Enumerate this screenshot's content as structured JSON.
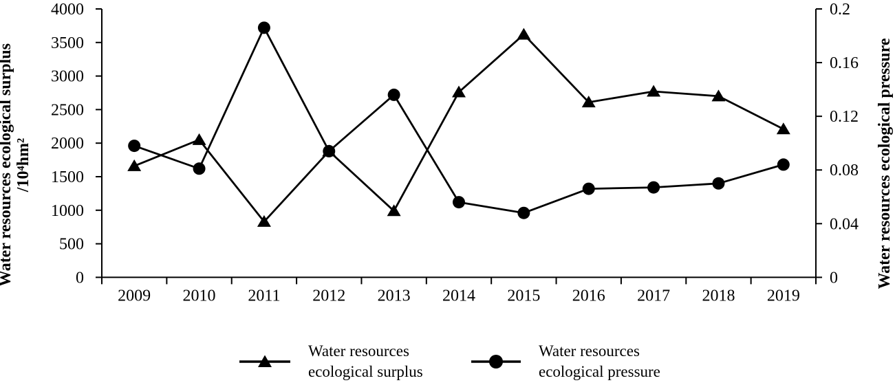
{
  "chart_data": {
    "type": "line",
    "title": "",
    "categories": [
      "2009",
      "2010",
      "2011",
      "2012",
      "2013",
      "2014",
      "2015",
      "2016",
      "2017",
      "2018",
      "2019"
    ],
    "series": [
      {
        "name": "Water resources ecological surplus",
        "axis": "left",
        "marker": "triangle",
        "color": "#000000",
        "values": [
          1660,
          2050,
          830,
          1880,
          990,
          2760,
          3620,
          2610,
          2770,
          2700,
          2210
        ]
      },
      {
        "name": "Water resources ecological pressure",
        "axis": "right",
        "marker": "circle",
        "color": "#000000",
        "values": [
          0.098,
          0.081,
          0.186,
          0.094,
          0.136,
          0.056,
          0.048,
          0.066,
          0.067,
          0.07,
          0.084
        ]
      }
    ],
    "left_axis": {
      "title_line1": "Water resources ecological surplus",
      "title_line2": "/10⁴hm²",
      "min": 0,
      "max": 4000,
      "tick_labels": [
        "0",
        "500",
        "1000",
        "1500",
        "2000",
        "2500",
        "3000",
        "3500",
        "4000"
      ]
    },
    "right_axis": {
      "title": "Water resources ecological pressure",
      "min": 0,
      "max": 0.2,
      "tick_labels": [
        "0",
        "0.04",
        "0.08",
        "0.12",
        "0.16",
        "0.2"
      ]
    },
    "legend": [
      {
        "marker": "triangle",
        "label_line1": "Water resources",
        "label_line2": "ecological surplus"
      },
      {
        "marker": "circle",
        "label_line1": "Water resources",
        "label_line2": "ecological pressure"
      }
    ],
    "grid": false,
    "legend_position": "bottom-center",
    "colors": {
      "foreground": "#000000",
      "background": "#ffffff"
    }
  }
}
